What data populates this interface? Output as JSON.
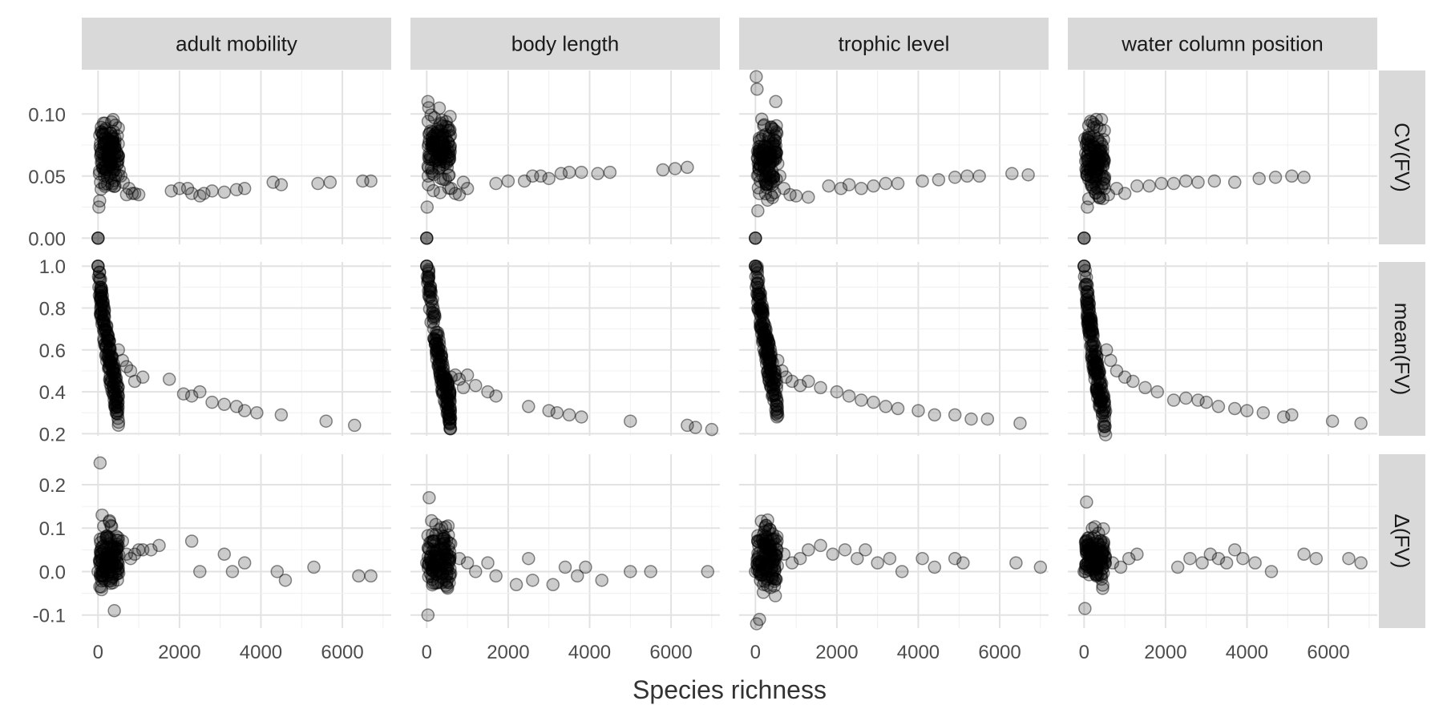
{
  "chart_data": {
    "type": "scatter",
    "xlabel": "Species richness",
    "facet_columns": [
      "adult mobility",
      "body length",
      "trophic level",
      "water column position"
    ],
    "facet_rows": [
      "CV(FV)",
      "mean(FV)",
      "Δ(FV)"
    ],
    "x_ticks": [
      "0",
      "2000",
      "4000",
      "6000"
    ],
    "xlim": [
      -400,
      7200
    ],
    "grid": true,
    "point_color": "#000000",
    "point_alpha": 0.2,
    "rows": [
      {
        "name": "CV(FV)",
        "ylim": [
          -0.005,
          0.135
        ],
        "y_ticks": [
          {
            "value": 0.0,
            "label": "0.00"
          },
          {
            "value": 0.05,
            "label": "0.05"
          },
          {
            "value": 0.1,
            "label": "0.10"
          }
        ]
      },
      {
        "name": "mean(FV)",
        "ylim": [
          0.19,
          1.02
        ],
        "y_ticks": [
          {
            "value": 0.2,
            "label": "0.2"
          },
          {
            "value": 0.4,
            "label": "0.4"
          },
          {
            "value": 0.6,
            "label": "0.6"
          },
          {
            "value": 0.8,
            "label": "0.8"
          },
          {
            "value": 1.0,
            "label": "1.0"
          }
        ]
      },
      {
        "name": "Δ(FV)",
        "ylim": [
          -0.13,
          0.27
        ],
        "y_ticks": [
          {
            "value": -0.1,
            "label": "-0.1"
          },
          {
            "value": 0.0,
            "label": "0.0"
          },
          {
            "value": 0.1,
            "label": "0.1"
          },
          {
            "value": 0.2,
            "label": "0.2"
          }
        ]
      }
    ],
    "panels": [
      {
        "row": "CV(FV)",
        "col": "adult mobility",
        "cluster": {
          "x_max": 480,
          "y_center": 0.072,
          "y_lo": 0.03,
          "y_hi": 0.105,
          "n": 130
        },
        "x": [
          0,
          0,
          0,
          20,
          40,
          60,
          480,
          520,
          560,
          620,
          700,
          760,
          840,
          900,
          1000,
          1800,
          2000,
          2200,
          2300,
          2500,
          2600,
          2800,
          3100,
          3400,
          3600,
          4300,
          4500,
          5400,
          5700,
          6500,
          6700
        ],
        "y": [
          0,
          0,
          0,
          0.025,
          0.03,
          0.045,
          0.06,
          0.055,
          0.05,
          0.045,
          0.035,
          0.04,
          0.036,
          0.036,
          0.035,
          0.038,
          0.04,
          0.04,
          0.036,
          0.034,
          0.036,
          0.038,
          0.037,
          0.039,
          0.04,
          0.045,
          0.043,
          0.044,
          0.045,
          0.046,
          0.046
        ]
      },
      {
        "row": "CV(FV)",
        "col": "body length",
        "cluster": {
          "x_max": 560,
          "y_center": 0.075,
          "y_lo": 0.03,
          "y_hi": 0.113,
          "n": 130
        },
        "x": [
          0,
          0,
          0,
          10,
          30,
          50,
          600,
          700,
          800,
          900,
          1000,
          1700,
          2000,
          2400,
          2600,
          2800,
          3000,
          3300,
          3500,
          3800,
          4200,
          4500,
          5800,
          6100,
          6400
        ],
        "y": [
          0,
          0,
          0,
          0.025,
          0.11,
          0.105,
          0.04,
          0.036,
          0.035,
          0.045,
          0.04,
          0.044,
          0.046,
          0.046,
          0.05,
          0.05,
          0.048,
          0.052,
          0.053,
          0.053,
          0.052,
          0.053,
          0.055,
          0.056,
          0.057
        ]
      },
      {
        "row": "CV(FV)",
        "col": "trophic level",
        "cluster": {
          "x_max": 500,
          "y_center": 0.07,
          "y_lo": 0.025,
          "y_hi": 0.105,
          "n": 130
        },
        "x": [
          0,
          0,
          0,
          20,
          40,
          60,
          500,
          550,
          600,
          700,
          850,
          1000,
          1300,
          1800,
          2100,
          2300,
          2600,
          2900,
          3200,
          3500,
          4100,
          4500,
          4900,
          5200,
          5500,
          6300,
          6700
        ],
        "y": [
          0,
          0,
          0,
          0.13,
          0.12,
          0.022,
          0.11,
          0.06,
          0.05,
          0.04,
          0.035,
          0.034,
          0.033,
          0.042,
          0.04,
          0.043,
          0.04,
          0.042,
          0.044,
          0.044,
          0.046,
          0.047,
          0.049,
          0.05,
          0.05,
          0.052,
          0.051
        ]
      },
      {
        "row": "CV(FV)",
        "col": "water column position",
        "cluster": {
          "x_max": 480,
          "y_center": 0.068,
          "y_lo": 0.02,
          "y_hi": 0.105,
          "n": 130
        },
        "x": [
          0,
          0,
          0,
          20,
          50,
          80,
          500,
          600,
          800,
          1000,
          1300,
          1600,
          1900,
          2200,
          2500,
          2800,
          3200,
          3700,
          4300,
          4700,
          5100,
          5400
        ],
        "y": [
          0,
          0,
          0,
          0.08,
          0.075,
          0.025,
          0.04,
          0.035,
          0.04,
          0.036,
          0.042,
          0.042,
          0.044,
          0.044,
          0.046,
          0.045,
          0.046,
          0.045,
          0.048,
          0.049,
          0.05,
          0.049
        ]
      },
      {
        "row": "mean(FV)",
        "col": "adult mobility",
        "cluster": {
          "x_max": 480,
          "decay_top": 0.95,
          "decay_bottom": 0.32,
          "n": 170
        },
        "x": [
          0,
          0,
          0,
          10,
          20,
          500,
          600,
          700,
          800,
          900,
          1100,
          1750,
          2100,
          2300,
          2500,
          2800,
          3100,
          3400,
          3600,
          3900,
          4500,
          5600,
          6300
        ],
        "y": [
          1.0,
          1.0,
          1.0,
          0.95,
          0.9,
          0.6,
          0.55,
          0.52,
          0.5,
          0.45,
          0.47,
          0.46,
          0.39,
          0.38,
          0.4,
          0.35,
          0.34,
          0.33,
          0.31,
          0.3,
          0.29,
          0.26,
          0.24
        ]
      },
      {
        "row": "mean(FV)",
        "col": "body length",
        "cluster": {
          "x_max": 560,
          "decay_top": 0.97,
          "decay_bottom": 0.3,
          "n": 170
        },
        "x": [
          0,
          0,
          0,
          10,
          20,
          600,
          700,
          800,
          900,
          1000,
          1200,
          1500,
          1700,
          2500,
          3000,
          3200,
          3500,
          3800,
          5000,
          6400,
          6600,
          7000
        ],
        "y": [
          1.0,
          1.0,
          1.0,
          0.95,
          0.92,
          0.47,
          0.48,
          0.46,
          0.42,
          0.48,
          0.43,
          0.4,
          0.38,
          0.33,
          0.31,
          0.3,
          0.29,
          0.28,
          0.26,
          0.24,
          0.23,
          0.22
        ]
      },
      {
        "row": "mean(FV)",
        "col": "trophic level",
        "cluster": {
          "x_max": 520,
          "decay_top": 0.97,
          "decay_bottom": 0.35,
          "n": 170
        },
        "x": [
          0,
          0,
          0,
          10,
          20,
          550,
          650,
          750,
          900,
          1100,
          1300,
          1600,
          2000,
          2300,
          2600,
          2900,
          3200,
          3500,
          4000,
          4400,
          4900,
          5300,
          5700,
          6500
        ],
        "y": [
          1.0,
          1.0,
          1.0,
          0.95,
          0.9,
          0.55,
          0.5,
          0.47,
          0.45,
          0.43,
          0.45,
          0.42,
          0.4,
          0.38,
          0.36,
          0.35,
          0.33,
          0.32,
          0.31,
          0.29,
          0.29,
          0.27,
          0.27,
          0.25
        ]
      },
      {
        "row": "mean(FV)",
        "col": "water column position",
        "cluster": {
          "x_max": 500,
          "decay_top": 0.96,
          "decay_bottom": 0.25,
          "n": 170
        },
        "x": [
          0,
          0,
          0,
          10,
          20,
          550,
          650,
          800,
          1000,
          1200,
          1500,
          1800,
          2200,
          2500,
          2800,
          3000,
          3300,
          3700,
          4000,
          4400,
          4900,
          5100,
          6100,
          6800
        ],
        "y": [
          1.0,
          1.0,
          1.0,
          0.95,
          0.9,
          0.6,
          0.55,
          0.5,
          0.47,
          0.45,
          0.42,
          0.4,
          0.36,
          0.37,
          0.36,
          0.35,
          0.33,
          0.32,
          0.31,
          0.3,
          0.28,
          0.29,
          0.26,
          0.25
        ]
      },
      {
        "row": "Δ(FV)",
        "col": "adult mobility",
        "cluster": {
          "x_max": 480,
          "y_center": 0.03,
          "y_lo": -0.07,
          "y_hi": 0.13,
          "n": 130
        },
        "x": [
          0,
          50,
          100,
          400,
          600,
          700,
          800,
          900,
          1000,
          1100,
          1300,
          1500,
          2300,
          2500,
          3100,
          3300,
          3600,
          4400,
          4600,
          5300,
          6400,
          6700
        ],
        "y": [
          0.0,
          0.25,
          0.13,
          -0.09,
          0.07,
          0.04,
          0.03,
          0.04,
          0.05,
          0.05,
          0.05,
          0.06,
          0.07,
          0.0,
          0.04,
          0.0,
          0.02,
          0.0,
          -0.02,
          0.01,
          -0.01,
          -0.01
        ]
      },
      {
        "row": "Δ(FV)",
        "col": "body length",
        "cluster": {
          "x_max": 560,
          "y_center": 0.04,
          "y_lo": -0.08,
          "y_hi": 0.15,
          "n": 130
        },
        "x": [
          0,
          30,
          60,
          800,
          1000,
          1200,
          1500,
          1700,
          2200,
          2500,
          2600,
          3100,
          3400,
          3700,
          3900,
          4300,
          5000,
          5500,
          6900
        ],
        "y": [
          0.02,
          -0.1,
          0.17,
          0.03,
          0.02,
          0.0,
          0.02,
          -0.01,
          -0.03,
          0.03,
          -0.02,
          -0.03,
          0.01,
          -0.01,
          0.01,
          -0.02,
          0.0,
          0.0,
          0.0
        ]
      },
      {
        "row": "Δ(FV)",
        "col": "trophic level",
        "cluster": {
          "x_max": 520,
          "y_center": 0.04,
          "y_lo": -0.09,
          "y_hi": 0.15,
          "n": 130
        },
        "x": [
          0,
          30,
          100,
          700,
          900,
          1100,
          1300,
          1600,
          1900,
          2200,
          2500,
          2700,
          3000,
          3300,
          3600,
          4100,
          4400,
          4900,
          5100,
          6400,
          7000
        ],
        "y": [
          0.0,
          -0.12,
          -0.11,
          0.04,
          0.02,
          0.03,
          0.05,
          0.06,
          0.04,
          0.05,
          0.03,
          0.05,
          0.02,
          0.03,
          0.0,
          0.03,
          0.01,
          0.03,
          0.02,
          0.02,
          0.01
        ]
      },
      {
        "row": "Δ(FV)",
        "col": "water column position",
        "cluster": {
          "x_max": 500,
          "y_center": 0.03,
          "y_lo": -0.05,
          "y_hi": 0.12,
          "n": 130
        },
        "x": [
          0,
          20,
          60,
          700,
          900,
          1100,
          1300,
          2300,
          2600,
          2900,
          3100,
          3300,
          3500,
          3700,
          3900,
          4200,
          4600,
          5400,
          5700,
          6500,
          6800
        ],
        "y": [
          0.0,
          -0.085,
          0.16,
          0.02,
          0.01,
          0.03,
          0.04,
          0.01,
          0.03,
          0.02,
          0.04,
          0.03,
          0.02,
          0.05,
          0.03,
          0.02,
          0.0,
          0.04,
          0.03,
          0.03,
          0.02
        ]
      }
    ]
  }
}
